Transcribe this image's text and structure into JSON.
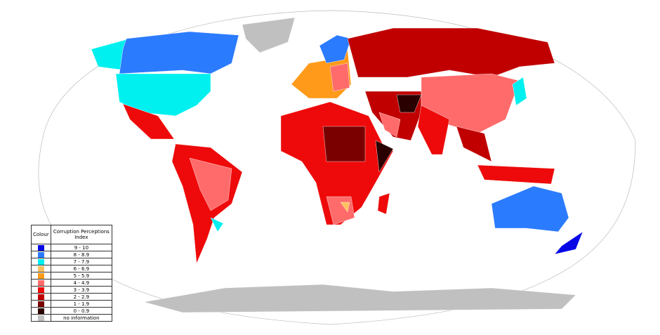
{
  "legend": {
    "header": {
      "colour": "Colour",
      "index": "Corruption Perceptions Index"
    },
    "rows": [
      {
        "label": "9 - 10",
        "color": "#0707e6"
      },
      {
        "label": "8 - 8.9",
        "color": "#2b7bff"
      },
      {
        "label": "7 - 7.9",
        "color": "#00f0f0"
      },
      {
        "label": "6 - 6.9",
        "color": "#ffc060"
      },
      {
        "label": "5 - 5.9",
        "color": "#ff9a1a"
      },
      {
        "label": "4 - 4.9",
        "color": "#ff6b6b"
      },
      {
        "label": "3 - 3.9",
        "color": "#ee0a0a"
      },
      {
        "label": "2 - 2.9",
        "color": "#c00000"
      },
      {
        "label": "1 - 1.9",
        "color": "#7a0000"
      },
      {
        "label": "0 - 0.9",
        "color": "#2a0000"
      },
      {
        "label": "no information",
        "color": "#c0c0c0"
      }
    ]
  }
}
